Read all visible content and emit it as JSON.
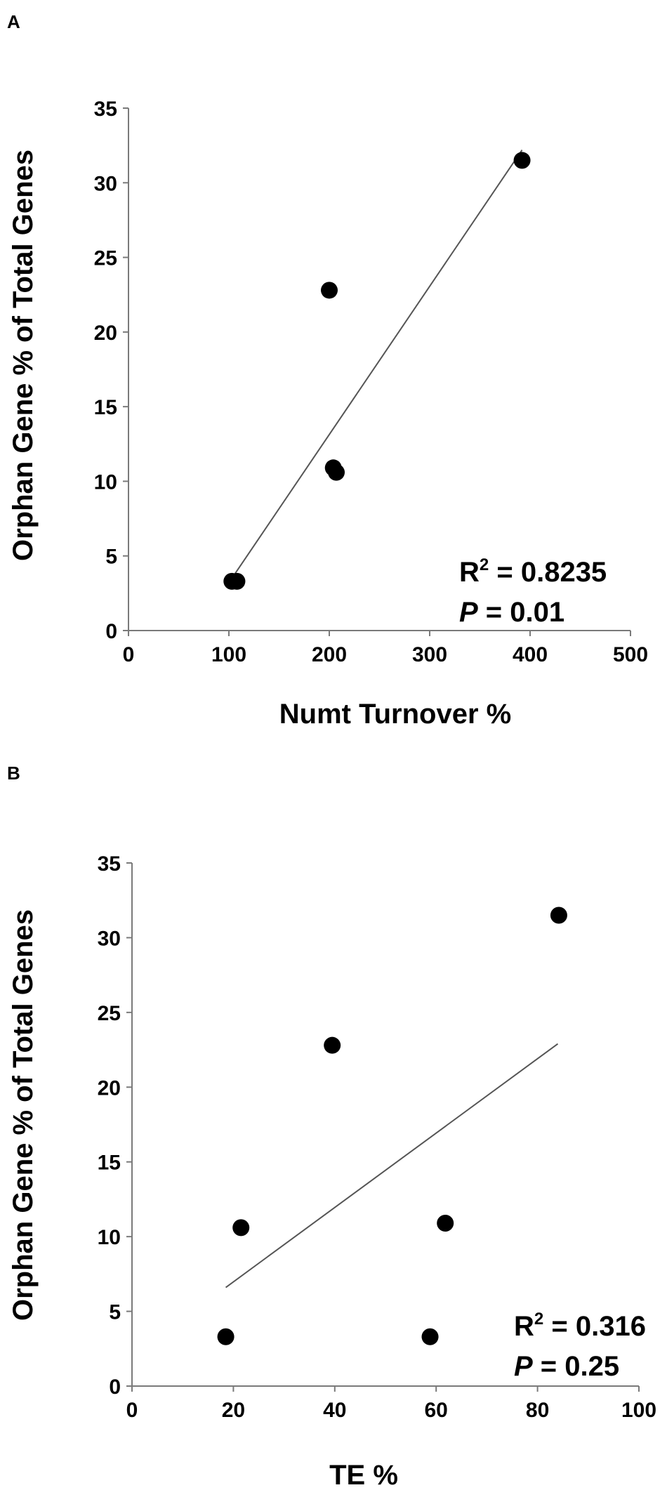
{
  "chart_data": [
    {
      "type": "scatter",
      "panel": "A",
      "xlabel": "Numt Turnover %",
      "ylabel": "Orphan Gene % of Total Genes",
      "xlim": [
        0,
        500
      ],
      "ylim": [
        0,
        35
      ],
      "xticks": [
        "0",
        "100",
        "200",
        "300",
        "400",
        "500"
      ],
      "yticks": [
        "0",
        "5",
        "10",
        "15",
        "20",
        "25",
        "30",
        "35"
      ],
      "points": [
        {
          "x": 103,
          "y": 3.3
        },
        {
          "x": 108,
          "y": 3.3
        },
        {
          "x": 200,
          "y": 22.8
        },
        {
          "x": 204,
          "y": 10.9
        },
        {
          "x": 207,
          "y": 10.6
        },
        {
          "x": 392,
          "y": 31.5
        }
      ],
      "trendline": {
        "x1": 103,
        "y1": 3.5,
        "x2": 392,
        "y2": 32.2
      },
      "r2_label": "R",
      "r2_sup": "2",
      "r2_value": " = 0.8235",
      "p_label": "P",
      "p_value": " = 0.01"
    },
    {
      "type": "scatter",
      "panel": "B",
      "xlabel": "TE %",
      "ylabel": "Orphan Gene % of Total Genes",
      "xlim": [
        0,
        100
      ],
      "ylim": [
        0,
        35
      ],
      "xticks": [
        "0",
        "20",
        "40",
        "60",
        "80",
        "100"
      ],
      "yticks": [
        "0",
        "5",
        "10",
        "15",
        "20",
        "25",
        "30",
        "35"
      ],
      "points": [
        {
          "x": 18.5,
          "y": 3.3
        },
        {
          "x": 21.5,
          "y": 10.6
        },
        {
          "x": 39.5,
          "y": 22.8
        },
        {
          "x": 58.8,
          "y": 3.3
        },
        {
          "x": 61.8,
          "y": 10.9
        },
        {
          "x": 84.2,
          "y": 31.5
        }
      ],
      "trendline": {
        "x1": 18.5,
        "y1": 6.6,
        "x2": 84.0,
        "y2": 22.9
      },
      "r2_label": "R",
      "r2_sup": "2",
      "r2_value": " = 0.316",
      "p_label": "P",
      "p_value": " = 0.25"
    }
  ]
}
